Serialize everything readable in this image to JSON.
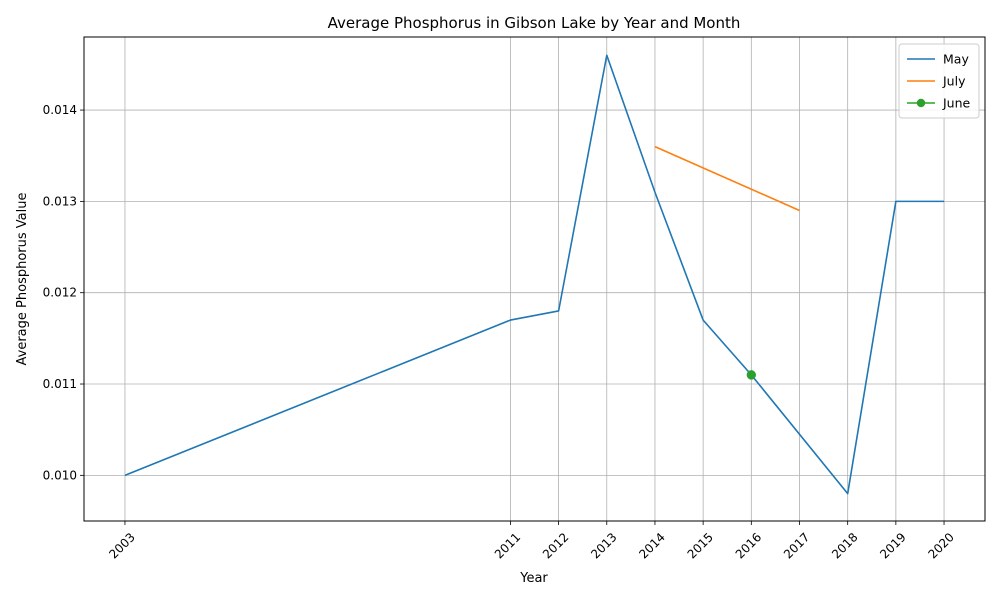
{
  "chart_data": {
    "type": "line",
    "title": "Average Phosphorus in Gibson Lake by Year and Month",
    "xlabel": "Year",
    "ylabel": "Average Phosphorus Value",
    "x_ticks": [
      2003,
      2011,
      2012,
      2013,
      2014,
      2015,
      2016,
      2017,
      2018,
      2019,
      2020
    ],
    "y_ticks": [
      "0.010",
      "0.011",
      "0.012",
      "0.013",
      "0.014"
    ],
    "xlim": [
      2003,
      2020
    ],
    "ylim": [
      0.0095,
      0.0148
    ],
    "grid": true,
    "legend_position": "top-right",
    "series": [
      {
        "name": "May",
        "color": "#1f77b4",
        "marker": false,
        "x": [
          2003,
          2011,
          2012,
          2013,
          2014,
          2015,
          2016,
          2018,
          2019,
          2020
        ],
        "y": [
          0.01,
          0.0117,
          0.0118,
          0.0146,
          0.0131,
          0.0117,
          0.0111,
          0.0098,
          0.013,
          0.013
        ]
      },
      {
        "name": "July",
        "color": "#ff7f0e",
        "marker": false,
        "x": [
          2014,
          2017
        ],
        "y": [
          0.0136,
          0.0129
        ]
      },
      {
        "name": "June",
        "color": "#2ca02c",
        "marker": true,
        "x": [
          2016
        ],
        "y": [
          0.0111
        ]
      }
    ]
  }
}
